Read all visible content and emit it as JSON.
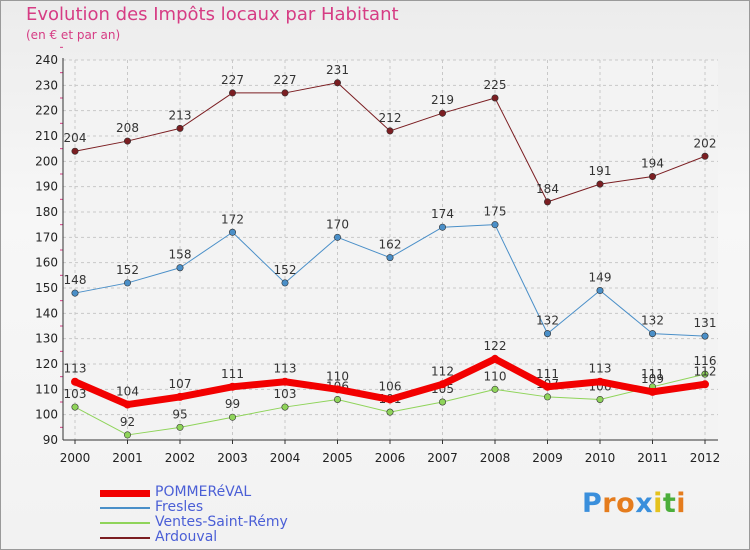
{
  "title": "Evolution des Impôts locaux par Habitant",
  "subtitle": "(en € et par an)",
  "logo": {
    "letters": [
      "P",
      "r",
      "o",
      "x",
      "i",
      "t",
      "i"
    ],
    "colors": [
      "#3a8fdc",
      "#e57c1d",
      "#e57c1d",
      "#3a8fdc",
      "#e5c21d",
      "#4cae3b",
      "#e57c1d"
    ]
  },
  "chart_data": {
    "type": "line",
    "x": [
      "2000",
      "2001",
      "2002",
      "2003",
      "2004",
      "2005",
      "2006",
      "2007",
      "2008",
      "2009",
      "2010",
      "2011",
      "2012"
    ],
    "ylim": [
      90,
      240
    ],
    "yticks": [
      90,
      100,
      110,
      120,
      130,
      140,
      150,
      160,
      170,
      180,
      190,
      200,
      210,
      220,
      230,
      240
    ],
    "grid": true,
    "legend_position": "bottom-left",
    "series": [
      {
        "name": "Ardouval",
        "color": "#7b1e22",
        "width": 1,
        "values": [
          204,
          208,
          213,
          227,
          227,
          231,
          212,
          219,
          225,
          184,
          191,
          194,
          202
        ]
      },
      {
        "name": "Fresles",
        "color": "#4a8fc8",
        "width": 1,
        "values": [
          148,
          152,
          158,
          172,
          152,
          170,
          162,
          174,
          175,
          132,
          149,
          132,
          131
        ]
      },
      {
        "name": "Ventes-Saint-Rémy",
        "color": "#8fd45a",
        "width": 1,
        "values": [
          103,
          92,
          95,
          99,
          103,
          106,
          101,
          105,
          110,
          107,
          106,
          111,
          116
        ]
      },
      {
        "name": "POMMERéVAL",
        "color": "#f20000",
        "width": 7,
        "values": [
          113,
          104,
          107,
          111,
          113,
          110,
          106,
          112,
          122,
          111,
          113,
          109,
          112
        ]
      }
    ]
  },
  "legend": [
    {
      "name": "POMMERéVAL",
      "color": "#f20000",
      "thickness": 7
    },
    {
      "name": "Fresles",
      "color": "#4a8fc8",
      "thickness": 2
    },
    {
      "name": "Ventes-Saint-Rémy",
      "color": "#8fd45a",
      "thickness": 2
    },
    {
      "name": "Ardouval",
      "color": "#7b1e22",
      "thickness": 2
    }
  ]
}
